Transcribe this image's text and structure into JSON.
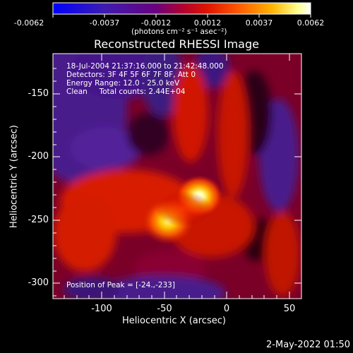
{
  "colorbar": {
    "ticks": [
      "-0.0062",
      "-0.0037",
      "-0.0012",
      "0.0012",
      "0.0037",
      "0.0062"
    ],
    "unit_label": "(photons cm⁻² s⁻¹ asec⁻²)"
  },
  "plot": {
    "title": "Reconstructed RHESSI Image",
    "info_lines": [
      "18-Jul-2004 21:37:16.000 to 21:42:48.000",
      "Detectors: 3F 4F 5F 6F 7F 8F, Att 0",
      "Energy Range: 12.0 - 25.0 keV",
      "Clean     Total counts: 2.44E+04"
    ],
    "peak_text": "Position of Peak = [-24.,-233]",
    "xlabel": "Heliocentric X (arcsec)",
    "ylabel": "Heliocentric Y (arcsec)",
    "xtick_labels": [
      "-100",
      "-50",
      "0",
      "50"
    ],
    "ytick_labels": [
      "-150",
      "-200",
      "-250",
      "-300"
    ]
  },
  "chart_data": {
    "type": "heatmap",
    "title": "Reconstructed RHESSI Image",
    "xlabel": "Heliocentric X (arcsec)",
    "ylabel": "Heliocentric Y (arcsec)",
    "xlim": [
      -135,
      57
    ],
    "ylim": [
      -313,
      -124
    ],
    "xticks": [
      -100,
      -50,
      0,
      50
    ],
    "yticks": [
      -150,
      -200,
      -250,
      -300
    ],
    "colorbar": {
      "min": -0.0062,
      "max": 0.0062,
      "ticks": [
        -0.0062,
        -0.0037,
        -0.0012,
        0.0012,
        0.0037,
        0.0062
      ],
      "unit": "photons cm^-2 s^-1 asec^-2",
      "colors": [
        "#0000ff",
        "#5a008c",
        "#b00030",
        "#ff2000",
        "#ff9900",
        "#ffff99",
        "#ffffff"
      ]
    },
    "peak_position": [
      -24,
      -233
    ],
    "sources": [
      {
        "x": -24,
        "y": -233,
        "value": 0.0062
      },
      {
        "x": -47,
        "y": -250,
        "value": 0.0055
      },
      {
        "x": -60,
        "y": -210,
        "value": 0.0008
      },
      {
        "x": 20,
        "y": -270,
        "value": 0.0012
      },
      {
        "x": -95,
        "y": -180,
        "value": -0.0045
      },
      {
        "x": -75,
        "y": -305,
        "value": -0.004
      }
    ],
    "grid": false
  },
  "footer": {
    "timestamp": "2-May-2022 01:50"
  }
}
